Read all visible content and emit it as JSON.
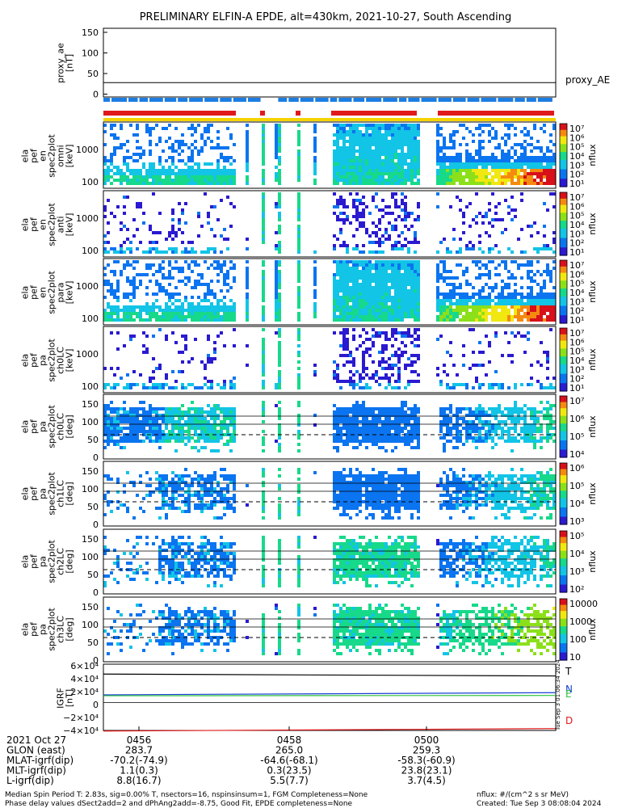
{
  "title": "PRELIMINARY ELFIN-A EPDE, alt=430km, 2021-10-27, South Ascending",
  "colors": {
    "red_bar": "#e0191b",
    "blue_bar": "#1c7de2",
    "yellow_bar": "#f5d300",
    "igrf_T": "#000000",
    "igrf_N": "#1a3fd6",
    "igrf_E": "#2bc23a",
    "igrf_D": "#e0191b"
  },
  "panels": {
    "proxy_ae": {
      "ylabel": "proxy_ae\n[nT]",
      "yticks": [
        "150",
        "100",
        "50",
        "0"
      ],
      "legend": "proxy_AE"
    },
    "spec": [
      {
        "ylabel": "ela\npef\nen\nspec2plot\nomni\n[keV]",
        "yticks": [
          "1000",
          "100"
        ],
        "cbar_ticks": [
          "10⁷",
          "10⁶",
          "10⁵",
          "10⁴",
          "10³",
          "10²",
          "10¹"
        ],
        "cbar_label": "nflux"
      },
      {
        "ylabel": "ela\npef\nen\nspec2plot\nanti\n[keV]",
        "yticks": [
          "1000",
          "100"
        ],
        "cbar_ticks": [
          "10⁷",
          "10⁶",
          "10⁵",
          "10⁴",
          "10³",
          "10²",
          "10¹"
        ],
        "cbar_label": "nflux"
      },
      {
        "ylabel": "ela\npef\nen\nspec2plot\npara\n[keV]",
        "yticks": [
          "1000",
          "100"
        ],
        "cbar_ticks": [
          "10⁷",
          "10⁶",
          "10⁵",
          "10⁴",
          "10³",
          "10²",
          "10¹"
        ],
        "cbar_label": "nflux"
      },
      {
        "ylabel": "ela\npef\npa\nspec2plot\nch0LC\n[keV]",
        "yticks": [
          "1000",
          "100"
        ],
        "cbar_ticks": [
          "10⁷",
          "10⁶",
          "10⁵",
          "10⁴",
          "10³",
          "10²",
          "10¹"
        ],
        "cbar_label": "nflux"
      }
    ],
    "pa": [
      {
        "ylabel": "ela\npef\npa\nspec2plot\nch0LC\n[deg]",
        "yticks": [
          "150",
          "100",
          "50",
          "0"
        ],
        "cbar_ticks": [
          "10⁷",
          "10⁶",
          "10⁵",
          "10⁴"
        ],
        "cbar_label": "nflux"
      },
      {
        "ylabel": "ela\npef\npa\nspec2plot\nch1LC\n[deg]",
        "yticks": [
          "150",
          "100",
          "50",
          "0"
        ],
        "cbar_ticks": [
          "10⁶",
          "10⁵",
          "10⁴",
          "10³"
        ],
        "cbar_label": "nflux"
      },
      {
        "ylabel": "ela\npef\npa\nspec2plot\nch2LC\n[deg]",
        "yticks": [
          "150",
          "100",
          "50",
          "0"
        ],
        "cbar_ticks": [
          "10⁵",
          "10⁴",
          "10³",
          "10²"
        ],
        "cbar_label": "nflux"
      },
      {
        "ylabel": "ela\npef\npa\nspec2plot\nch3LC\n[deg]",
        "yticks": [
          "150",
          "100",
          "50",
          "0"
        ],
        "cbar_ticks": [
          "10000",
          "1000",
          "100",
          "10"
        ],
        "cbar_label": "nflux"
      }
    ],
    "igrf": {
      "ylabel": "IGRF\n[nT]",
      "yticks": [
        "6×10⁴",
        "4×10⁴",
        "2×10⁴",
        "0",
        "−2×10⁴",
        "−4×10⁴"
      ],
      "legend": [
        "T",
        "N",
        "E",
        "D"
      ],
      "sidestamp": "Tue Sep 3 01:06:34 2024"
    }
  },
  "footer": {
    "rows": [
      [
        "2021 Oct 27",
        "0456",
        "0458",
        "0500"
      ],
      [
        "GLON (east)",
        "283.7",
        "265.0",
        "259.3"
      ],
      [
        "MLAT-igrf(dip)",
        "-70.2(-74.9)",
        "-64.6(-68.1)",
        "-58.3(-60.9)"
      ],
      [
        "MLT-igrf(dip)",
        "1.1(0.3)",
        "0.3(23.5)",
        "23.8(23.1)"
      ],
      [
        "L-igrf(dip)",
        "8.8(16.7)",
        "5.5(7.7)",
        "3.7(4.5)"
      ]
    ],
    "note1": "Median Spin Period T: 2.83s, sig=0.00% T, nsectors=16, nspinsinsum=1, FGM Completeness=None",
    "note2": "Phase delay values dSect2add=2 and dPhAng2add=-8.75, Good Fit, EPDE completeness=None",
    "units": "nflux: #/(cm^2 s sr MeV)",
    "created": "Created: Tue Sep  3 08:08:04 2024"
  },
  "chart_data": {
    "type": "heatmap",
    "title": "PRELIMINARY ELFIN-A EPDE, alt=430km, 2021-10-27, South Ascending",
    "x_ticks": [
      "0456",
      "0458",
      "0500"
    ],
    "proxy_ae": {
      "ylim": [
        0,
        150
      ],
      "value": 28
    },
    "energy_panels_ylim_keV": [
      50,
      7000
    ],
    "pitch_angle_panels_ylim_deg": [
      0,
      180
    ],
    "igrf_ylim_nT": [
      -45000,
      62000
    ],
    "igrf_series": [
      {
        "name": "T",
        "start": 46000,
        "end": 43000
      },
      {
        "name": "N",
        "start": 12500,
        "end": 16000
      },
      {
        "name": "E",
        "start": 11000,
        "end": 11500
      },
      {
        "name": "D",
        "start": -46000,
        "end": -42000
      }
    ]
  }
}
